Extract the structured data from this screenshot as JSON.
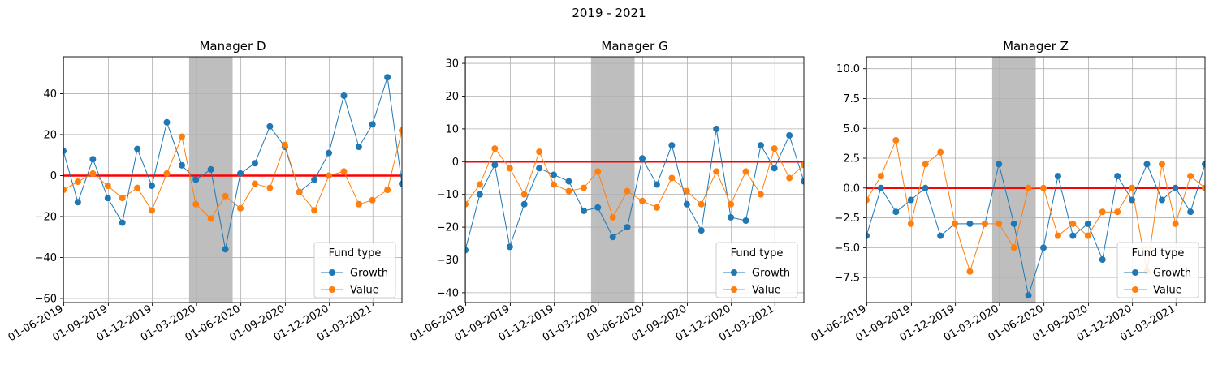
{
  "figure": {
    "suptitle": "2019 - 2021"
  },
  "colors": {
    "growth": "#1f77b4",
    "value": "#ff7f0e",
    "zero_line": "#ff0000",
    "shade": "#bebebe",
    "grid": "#b0b0b0"
  },
  "chart_data": [
    {
      "type": "line",
      "title": "Manager D",
      "xlabel": "",
      "ylabel": "",
      "x": [
        "2019-05",
        "2019-06",
        "2019-07",
        "2019-08",
        "2019-09",
        "2019-10",
        "2019-11",
        "2019-12",
        "2020-01",
        "2020-02",
        "2020-03",
        "2020-04",
        "2020-05",
        "2020-06",
        "2020-07",
        "2020-08",
        "2020-09",
        "2020-10",
        "2020-11",
        "2020-12",
        "2021-01",
        "2021-02",
        "2021-03",
        "2021-04"
      ],
      "x_tick_labels": [
        "01-06-2019",
        "01-09-2019",
        "01-12-2019",
        "01-03-2020",
        "01-06-2020",
        "01-09-2020",
        "01-12-2020",
        "01-03-2021"
      ],
      "ylim": [
        -62,
        58
      ],
      "y_ticks": [
        -60,
        -40,
        -20,
        0,
        20,
        40
      ],
      "grid": true,
      "shaded_region": [
        "2020-02-15",
        "2020-05-15"
      ],
      "zero_line": 0,
      "legend": {
        "title": "Fund type",
        "position": "lower right"
      },
      "series": [
        {
          "name": "Growth",
          "values": [
            12,
            -13,
            8,
            -11,
            -23,
            13,
            -5,
            26,
            5,
            -2,
            3,
            -36,
            1,
            6,
            24,
            14,
            -8,
            -2,
            11,
            39,
            14,
            25,
            48,
            -4
          ]
        },
        {
          "name": "Value",
          "values": [
            -7,
            -3,
            1,
            -5,
            -11,
            -6,
            -17,
            1,
            19,
            -14,
            -21,
            -10,
            -16,
            -4,
            -6,
            15,
            -8,
            -17,
            0,
            2,
            -14,
            -12,
            -7,
            22
          ]
        }
      ]
    },
    {
      "type": "line",
      "title": "Manager G",
      "xlabel": "",
      "ylabel": "",
      "x": [
        "2019-05",
        "2019-06",
        "2019-07",
        "2019-08",
        "2019-09",
        "2019-10",
        "2019-11",
        "2019-12",
        "2020-01",
        "2020-02",
        "2020-03",
        "2020-04",
        "2020-05",
        "2020-06",
        "2020-07",
        "2020-08",
        "2020-09",
        "2020-10",
        "2020-11",
        "2020-12",
        "2021-01",
        "2021-02",
        "2021-03",
        "2021-04"
      ],
      "x_tick_labels": [
        "01-06-2019",
        "01-09-2019",
        "01-12-2019",
        "01-03-2020",
        "01-06-2020",
        "01-09-2020",
        "01-12-2020",
        "01-03-2021"
      ],
      "ylim": [
        -43,
        32
      ],
      "y_ticks": [
        -40,
        -30,
        -20,
        -10,
        0,
        10,
        20,
        30
      ],
      "grid": true,
      "shaded_region": [
        "2020-02-15",
        "2020-05-15"
      ],
      "zero_line": 0,
      "legend": {
        "title": "Fund type",
        "position": "lower right"
      },
      "series": [
        {
          "name": "Growth",
          "values": [
            -27,
            -10,
            -1,
            -26,
            -13,
            -2,
            -4,
            -6,
            -15,
            -14,
            -23,
            -20,
            1,
            -7,
            5,
            -13,
            -21,
            10,
            -17,
            -18,
            5,
            -2,
            8,
            -6
          ]
        },
        {
          "name": "Value",
          "values": [
            -13,
            -7,
            4,
            -2,
            -10,
            3,
            -7,
            -9,
            -8,
            -3,
            -17,
            -9,
            -12,
            -14,
            -5,
            -9,
            -13,
            -3,
            -13,
            -3,
            -10,
            4,
            -5,
            -1
          ]
        }
      ]
    },
    {
      "type": "line",
      "title": "Manager Z",
      "xlabel": "",
      "ylabel": "",
      "x": [
        "2019-05",
        "2019-06",
        "2019-07",
        "2019-08",
        "2019-09",
        "2019-10",
        "2019-11",
        "2019-12",
        "2020-01",
        "2020-02",
        "2020-03",
        "2020-04",
        "2020-05",
        "2020-06",
        "2020-07",
        "2020-08",
        "2020-09",
        "2020-10",
        "2020-11",
        "2020-12",
        "2021-01",
        "2021-02",
        "2021-03",
        "2021-04"
      ],
      "x_tick_labels": [
        "01-06-2019",
        "01-09-2019",
        "01-12-2019",
        "01-03-2020",
        "01-06-2020",
        "01-09-2020",
        "01-12-2020",
        "01-03-2021"
      ],
      "ylim": [
        -9.6,
        11
      ],
      "y_ticks": [
        -7.5,
        -5.0,
        -2.5,
        0.0,
        2.5,
        5.0,
        7.5,
        10.0
      ],
      "y_tick_labels": [
        "−7.5",
        "−5.0",
        "−2.5",
        "0.0",
        "2.5",
        "5.0",
        "7.5",
        "10.0"
      ],
      "grid": true,
      "shaded_region": [
        "2020-02-15",
        "2020-05-15"
      ],
      "zero_line": 0,
      "legend": {
        "title": "Fund type",
        "position": "lower right"
      },
      "series": [
        {
          "name": "Growth",
          "values": [
            -4,
            0,
            -2,
            -1,
            0,
            -4,
            -3,
            -3,
            -3,
            2,
            -3,
            -9,
            -5,
            1,
            -4,
            -3,
            -6,
            1,
            -1,
            2,
            -1,
            0,
            -2,
            2
          ]
        },
        {
          "name": "Value",
          "values": [
            -1,
            1,
            4,
            -3,
            2,
            3,
            -3,
            -7,
            -3,
            -3,
            -5,
            0,
            0,
            -4,
            -3,
            -4,
            -2,
            -2,
            0,
            -7,
            2,
            -3,
            1,
            0
          ]
        }
      ]
    }
  ]
}
